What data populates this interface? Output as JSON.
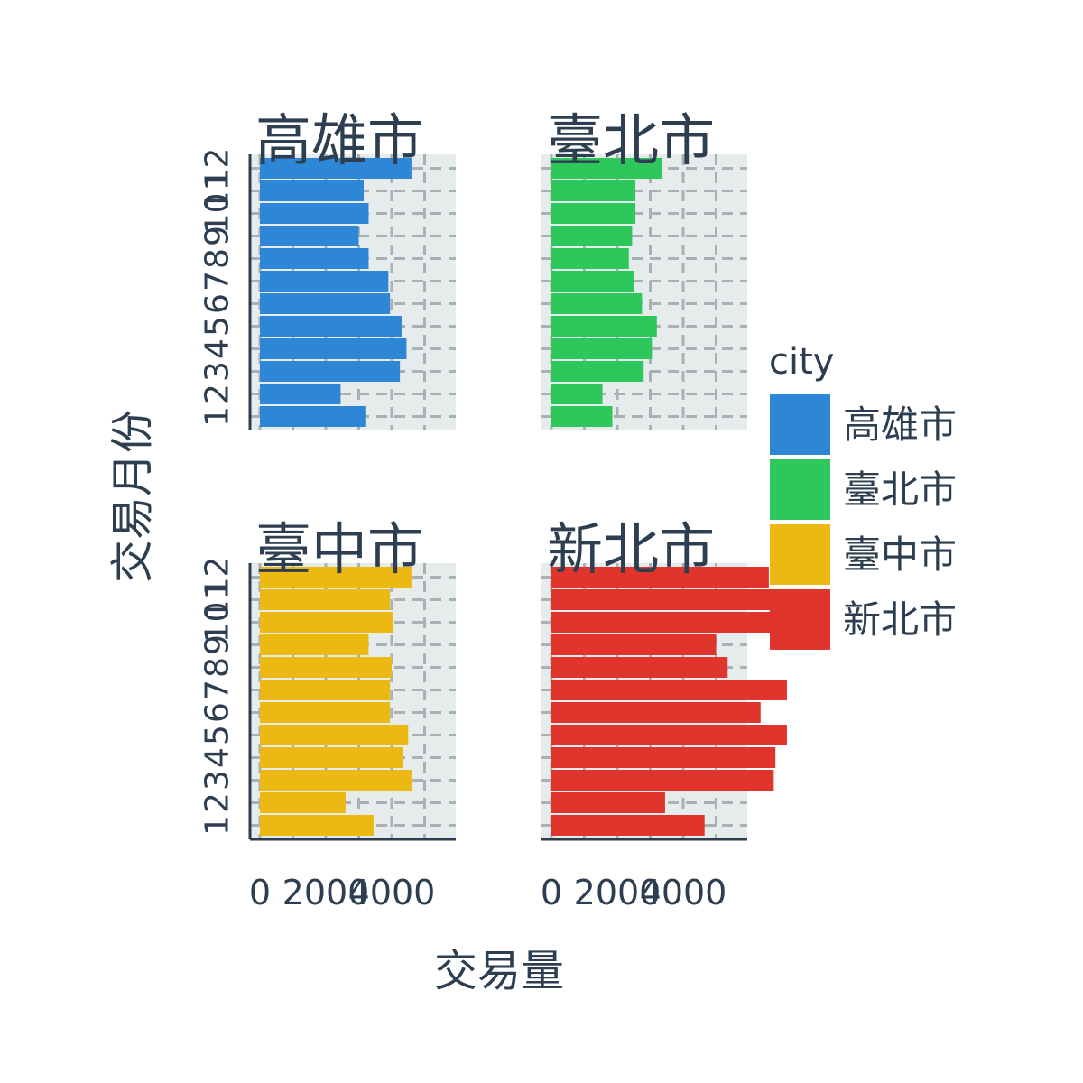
{
  "chart_data": {
    "type": "bar",
    "orientation": "horizontal",
    "facet_by": "city",
    "xlabel": "交易量",
    "ylabel": "交易月份",
    "xlim": [
      0,
      7500
    ],
    "x_ticks": [
      "0",
      "2000",
      "4000"
    ],
    "y_categories": [
      "1",
      "2",
      "3",
      "4",
      "5",
      "6",
      "7",
      "8",
      "9",
      "10",
      "11",
      "12"
    ],
    "legend": {
      "title": "city",
      "position": "right"
    },
    "grid": true,
    "series": [
      {
        "name": "高雄市",
        "color": "#2e86d6",
        "values": [
          3200,
          2450,
          4250,
          4450,
          4300,
          3950,
          3900,
          3300,
          3000,
          3300,
          3150,
          4600
        ]
      },
      {
        "name": "臺北市",
        "color": "#2ec75c",
        "values": [
          1850,
          1550,
          2800,
          3050,
          3200,
          2750,
          2500,
          2350,
          2450,
          2550,
          2550,
          3350
        ]
      },
      {
        "name": "臺中市",
        "color": "#ecb812",
        "values": [
          3450,
          2600,
          4600,
          4350,
          4500,
          3950,
          3950,
          4000,
          3300,
          4050,
          3950,
          4600
        ]
      },
      {
        "name": "新北市",
        "color": "#df352d",
        "values": [
          4650,
          3450,
          6750,
          6800,
          7150,
          6350,
          7150,
          5350,
          5000,
          6800,
          6850,
          6600
        ]
      }
    ]
  }
}
